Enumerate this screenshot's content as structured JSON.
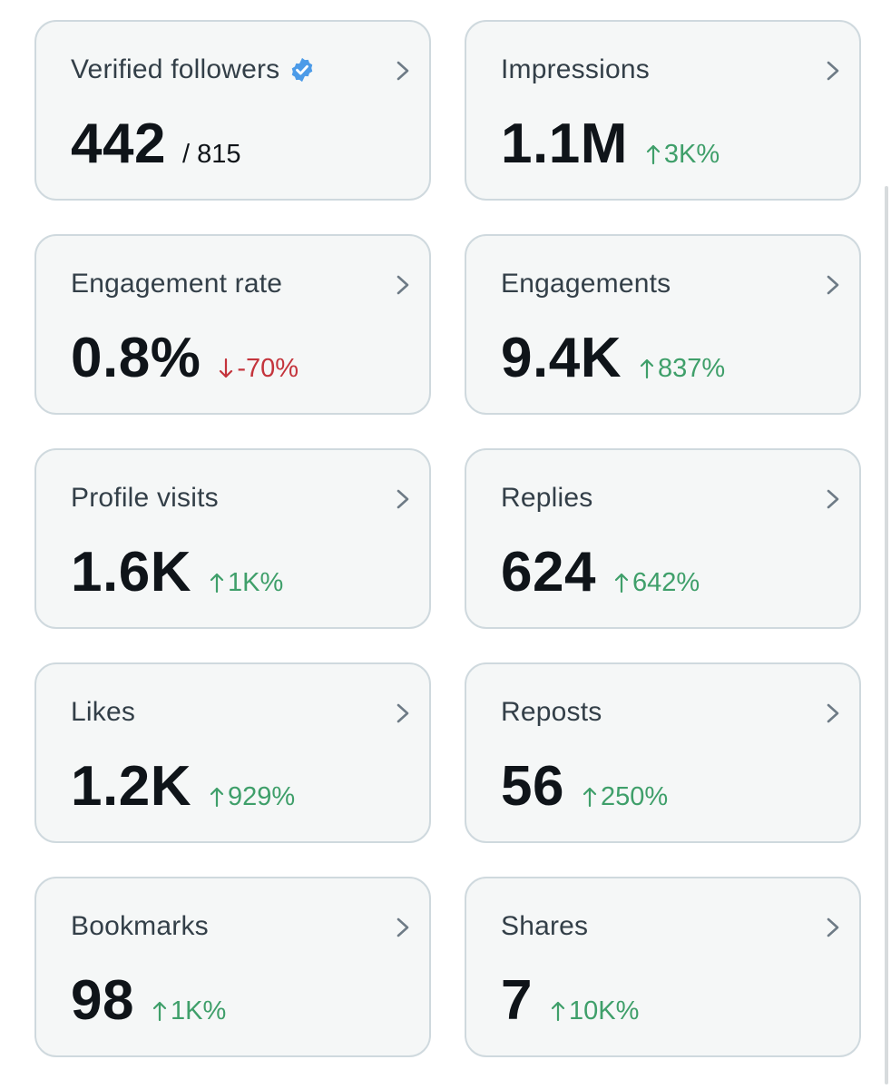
{
  "cards": [
    {
      "title": "Verified followers",
      "verified": true,
      "value": "442",
      "total": "/ 815",
      "change": null,
      "direction": null
    },
    {
      "title": "Impressions",
      "value": "1.1M",
      "change": "3K%",
      "direction": "up"
    },
    {
      "title": "Engagement rate",
      "value": "0.8%",
      "change": "-70%",
      "direction": "down"
    },
    {
      "title": "Engagements",
      "value": "9.4K",
      "change": "837%",
      "direction": "up"
    },
    {
      "title": "Profile visits",
      "value": "1.6K",
      "change": "1K%",
      "direction": "up"
    },
    {
      "title": "Replies",
      "value": "624",
      "change": "642%",
      "direction": "up"
    },
    {
      "title": "Likes",
      "value": "1.2K",
      "change": "929%",
      "direction": "up"
    },
    {
      "title": "Reposts",
      "value": "56",
      "change": "250%",
      "direction": "up"
    },
    {
      "title": "Bookmarks",
      "value": "98",
      "change": "1K%",
      "direction": "up"
    },
    {
      "title": "Shares",
      "value": "7",
      "change": "10K%",
      "direction": "up"
    }
  ],
  "icons": {
    "chevron": "chevron-right-icon",
    "verified": "verified-badge-icon",
    "up": "arrow-up-icon",
    "down": "arrow-down-icon"
  },
  "colors": {
    "up": "#3f9f6a",
    "down": "#c4343c",
    "verified": "#4c9be8",
    "chevron": "#6e7b86"
  }
}
